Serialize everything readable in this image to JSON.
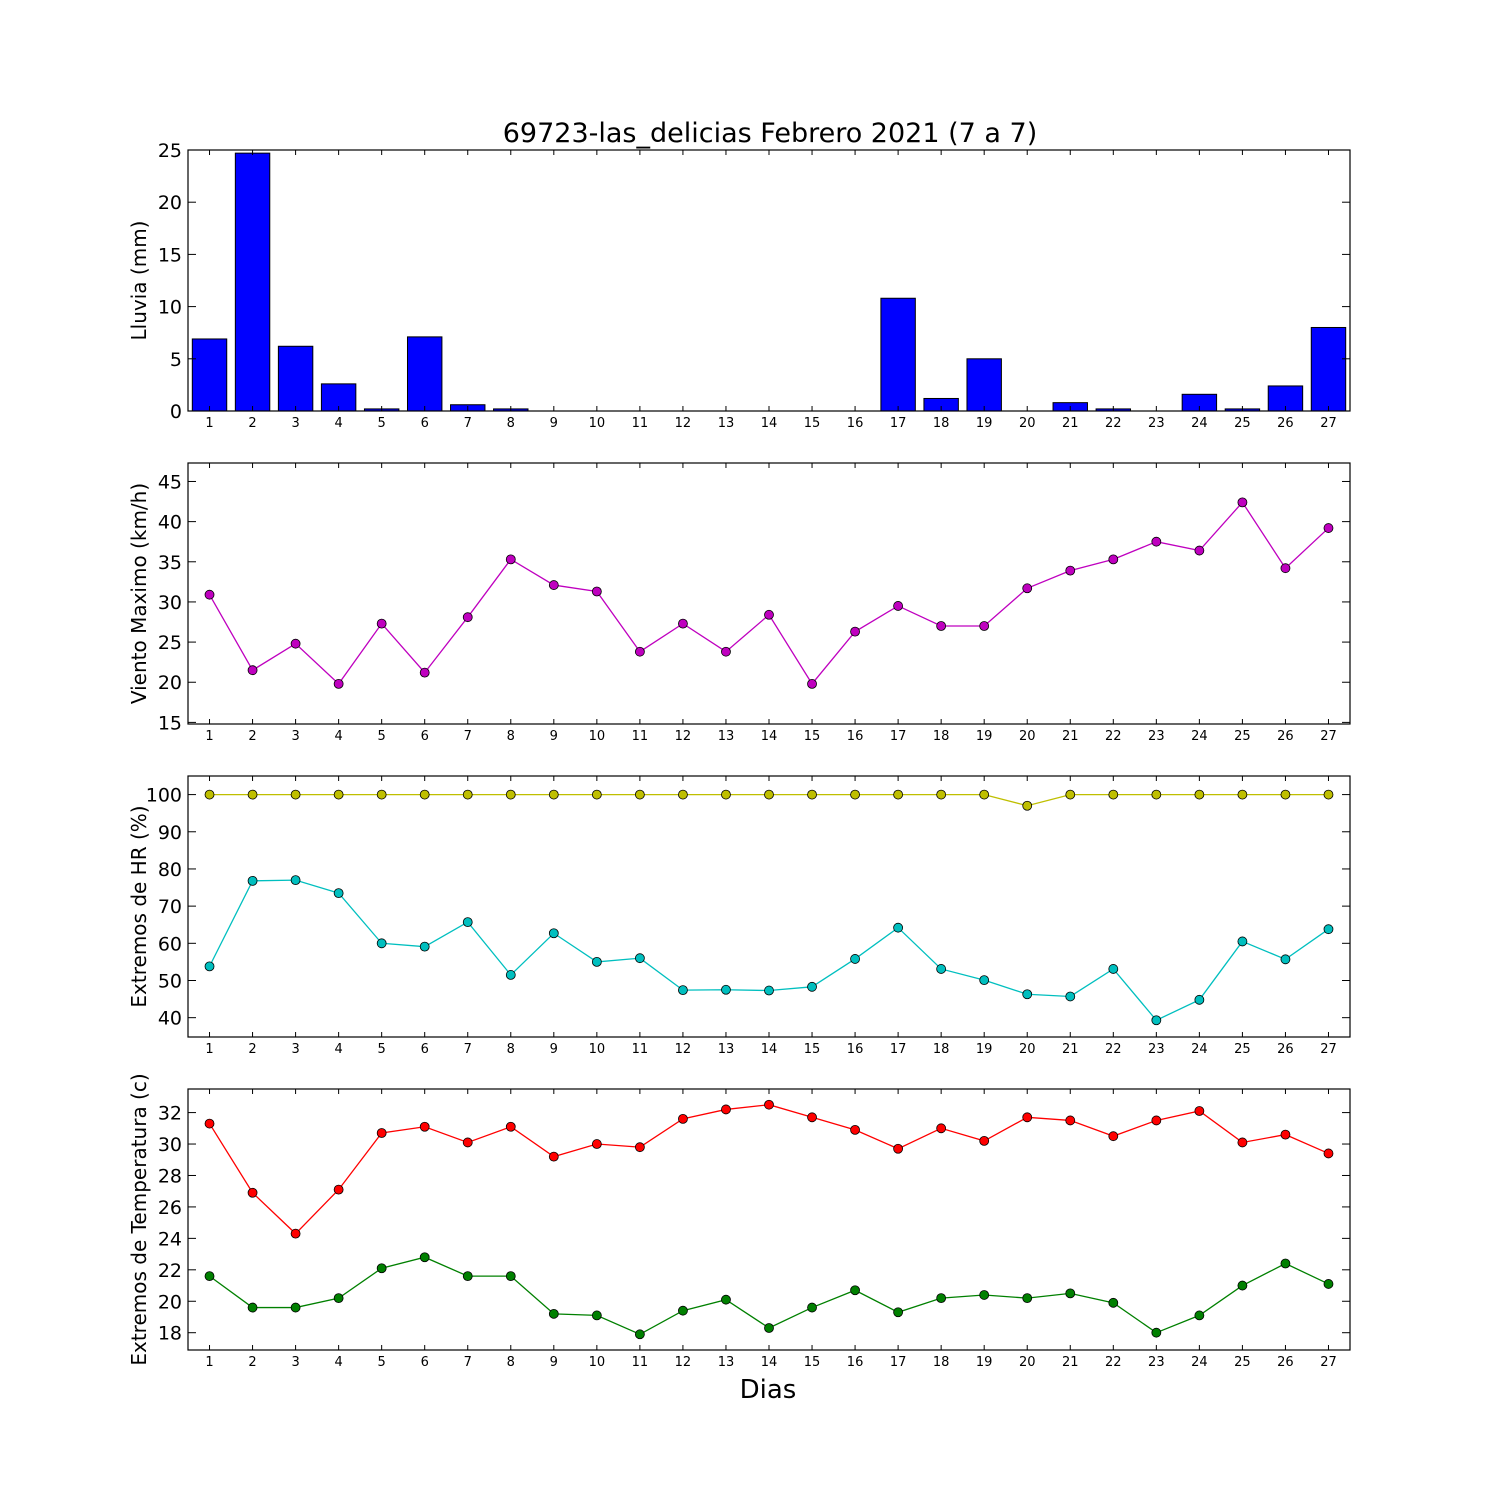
{
  "title": "69723-las_delicias Febrero 2021  (7 a 7)",
  "xlabel": "Dias",
  "chart_data": [
    {
      "type": "bar",
      "ylabel": "Lluvia (mm)",
      "ylim": [
        0,
        25
      ],
      "yticks": [
        0,
        5,
        10,
        15,
        20,
        25
      ],
      "categories": [
        1,
        2,
        3,
        4,
        5,
        6,
        7,
        8,
        9,
        10,
        11,
        12,
        13,
        14,
        15,
        16,
        17,
        18,
        19,
        20,
        21,
        22,
        23,
        24,
        25,
        26,
        27
      ],
      "series": [
        {
          "color": "#0000ff",
          "values": [
            6.9,
            24.7,
            6.2,
            2.6,
            0.2,
            7.1,
            0.6,
            0.2,
            0,
            0,
            0,
            0,
            0,
            0,
            0,
            0,
            10.8,
            1.2,
            5.0,
            0,
            0.8,
            0.2,
            0,
            1.6,
            0.2,
            2.4,
            8.0
          ]
        }
      ]
    },
    {
      "type": "line",
      "ylabel": "Viento Maximo (km/h)",
      "ylim": [
        14.8,
        47.3
      ],
      "yticks": [
        15,
        20,
        25,
        30,
        35,
        40,
        45
      ],
      "categories": [
        1,
        2,
        3,
        4,
        5,
        6,
        7,
        8,
        9,
        10,
        11,
        12,
        13,
        14,
        15,
        16,
        17,
        18,
        19,
        20,
        21,
        22,
        23,
        24,
        25,
        26,
        27
      ],
      "series": [
        {
          "color": "#bf00bf",
          "values": [
            30.9,
            21.5,
            24.8,
            19.8,
            27.3,
            21.2,
            28.1,
            35.3,
            32.1,
            31.3,
            23.8,
            27.3,
            23.8,
            28.4,
            19.8,
            26.3,
            29.5,
            27.0,
            27.0,
            31.7,
            33.9,
            35.3,
            37.5,
            36.4,
            42.4,
            34.2,
            39.2
          ]
        }
      ]
    },
    {
      "type": "line",
      "ylabel": "Extremos de HR (%)",
      "ylim": [
        34.8,
        105
      ],
      "yticks": [
        40,
        50,
        60,
        70,
        80,
        90,
        100
      ],
      "categories": [
        1,
        2,
        3,
        4,
        5,
        6,
        7,
        8,
        9,
        10,
        11,
        12,
        13,
        14,
        15,
        16,
        17,
        18,
        19,
        20,
        21,
        22,
        23,
        24,
        25,
        26,
        27
      ],
      "series": [
        {
          "color": "#bfbf00",
          "values": [
            100,
            100,
            100,
            100,
            100,
            100,
            100,
            100,
            100,
            100,
            100,
            100,
            100,
            100,
            100,
            100,
            100,
            100,
            100,
            97,
            100,
            100,
            100,
            100,
            100,
            100,
            100
          ]
        },
        {
          "color": "#00bfbf",
          "values": [
            53.8,
            76.8,
            77.0,
            73.5,
            60.0,
            59.1,
            65.7,
            51.5,
            62.7,
            55.0,
            56.0,
            47.4,
            47.5,
            47.3,
            48.3,
            55.8,
            64.2,
            53.1,
            50.1,
            46.3,
            45.7,
            53.1,
            39.3,
            44.8,
            60.5,
            55.7,
            63.8
          ]
        }
      ]
    },
    {
      "type": "line",
      "ylabel": "Extremos de Temperatura (c)",
      "ylim": [
        16.9,
        33.5
      ],
      "yticks": [
        18,
        20,
        22,
        24,
        26,
        28,
        30,
        32
      ],
      "categories": [
        1,
        2,
        3,
        4,
        5,
        6,
        7,
        8,
        9,
        10,
        11,
        12,
        13,
        14,
        15,
        16,
        17,
        18,
        19,
        20,
        21,
        22,
        23,
        24,
        25,
        26,
        27
      ],
      "series": [
        {
          "color": "#ff0000",
          "values": [
            31.3,
            26.9,
            24.3,
            27.1,
            30.7,
            31.1,
            30.1,
            31.1,
            29.2,
            30.0,
            29.8,
            31.6,
            32.2,
            32.5,
            31.7,
            30.9,
            29.7,
            31.0,
            30.2,
            31.7,
            31.5,
            30.5,
            31.5,
            32.1,
            30.1,
            30.6,
            29.4
          ]
        },
        {
          "color": "#008000",
          "values": [
            21.6,
            19.6,
            19.6,
            20.2,
            22.1,
            22.8,
            21.6,
            21.6,
            19.2,
            19.1,
            17.9,
            19.4,
            20.1,
            18.3,
            19.6,
            20.7,
            19.3,
            20.2,
            20.4,
            20.2,
            20.5,
            19.9,
            18.0,
            19.1,
            21.0,
            22.4,
            21.1
          ]
        }
      ]
    }
  ]
}
